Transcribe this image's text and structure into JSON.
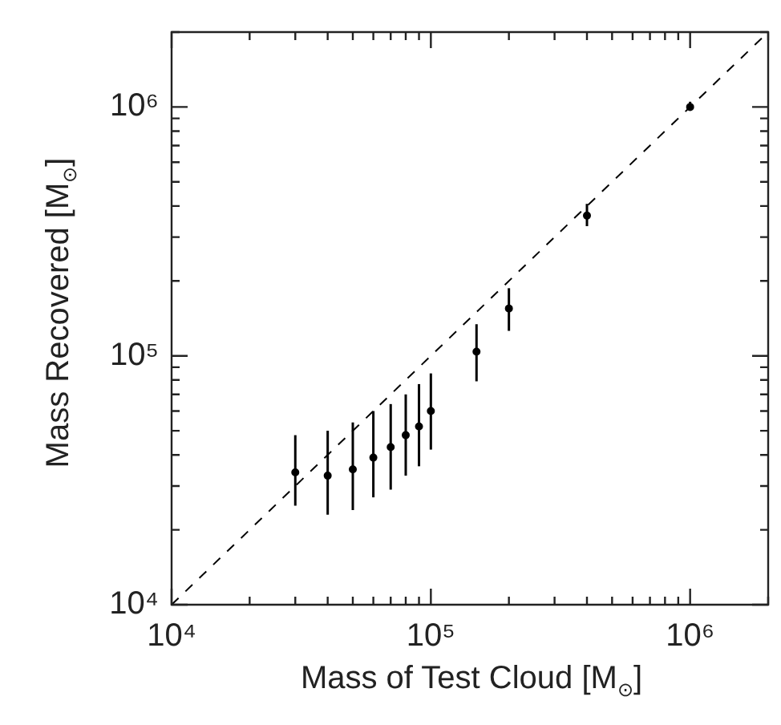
{
  "chart_data": {
    "type": "scatter",
    "xlabel": "Mass of Test Cloud [M$_{⊙}$]",
    "ylabel": "Mass Recovered [M$_{⊙}$]",
    "log": "xy",
    "xlim": [
      10000,
      2000000
    ],
    "ylim": [
      10000,
      2000000
    ],
    "xticks": [
      {
        "value": 10000,
        "label": "10⁴"
      },
      {
        "value": 20000,
        "label": null
      },
      {
        "value": 30000,
        "label": null
      },
      {
        "value": 40000,
        "label": null
      },
      {
        "value": 50000,
        "label": null
      },
      {
        "value": 60000,
        "label": null
      },
      {
        "value": 70000,
        "label": null
      },
      {
        "value": 80000,
        "label": null
      },
      {
        "value": 90000,
        "label": null
      },
      {
        "value": 100000,
        "label": "10⁵"
      },
      {
        "value": 200000,
        "label": null
      },
      {
        "value": 300000,
        "label": null
      },
      {
        "value": 400000,
        "label": null
      },
      {
        "value": 500000,
        "label": null
      },
      {
        "value": 600000,
        "label": null
      },
      {
        "value": 700000,
        "label": null
      },
      {
        "value": 800000,
        "label": null
      },
      {
        "value": 900000,
        "label": null
      },
      {
        "value": 1000000,
        "label": "10⁶"
      },
      {
        "value": 2000000,
        "label": null
      }
    ],
    "yticks": [
      {
        "value": 10000,
        "label": "10⁴"
      },
      {
        "value": 20000,
        "label": null
      },
      {
        "value": 30000,
        "label": null
      },
      {
        "value": 40000,
        "label": null
      },
      {
        "value": 50000,
        "label": null
      },
      {
        "value": 60000,
        "label": null
      },
      {
        "value": 70000,
        "label": null
      },
      {
        "value": 80000,
        "label": null
      },
      {
        "value": 90000,
        "label": null
      },
      {
        "value": 100000,
        "label": "10⁵"
      },
      {
        "value": 200000,
        "label": null
      },
      {
        "value": 300000,
        "label": null
      },
      {
        "value": 400000,
        "label": null
      },
      {
        "value": 500000,
        "label": null
      },
      {
        "value": 600000,
        "label": null
      },
      {
        "value": 700000,
        "label": null
      },
      {
        "value": 800000,
        "label": null
      },
      {
        "value": 900000,
        "label": null
      },
      {
        "value": 1000000,
        "label": "10⁶"
      },
      {
        "value": 2000000,
        "label": null
      }
    ],
    "grid": false,
    "legend": false,
    "series": [
      {
        "marker": "circle",
        "color": "#000000",
        "x": [
          30000,
          40000,
          50000,
          60000,
          70000,
          80000,
          90000,
          100000,
          150000,
          200000,
          400000,
          1000000
        ],
        "values": [
          34000,
          33000,
          35000,
          39000,
          43000,
          48000,
          52000,
          60000,
          104000,
          155000,
          366000,
          1000000
        ],
        "errors": [
          [
            25000,
            48000
          ],
          [
            23000,
            50000
          ],
          [
            24000,
            54000
          ],
          [
            27000,
            60000
          ],
          [
            29000,
            64000
          ],
          [
            33000,
            70000
          ],
          [
            36000,
            77000
          ],
          [
            42000,
            85000
          ],
          [
            79000,
            134000
          ],
          [
            126000,
            187000
          ],
          [
            332000,
            408000
          ],
          [
            970000,
            1050000
          ]
        ]
      },
      {
        "type": "line",
        "marker": "none",
        "color": "#000000",
        "line_style": "dashed",
        "x": [
          10000,
          2000000
        ],
        "values": [
          10000,
          2000000
        ]
      }
    ]
  }
}
